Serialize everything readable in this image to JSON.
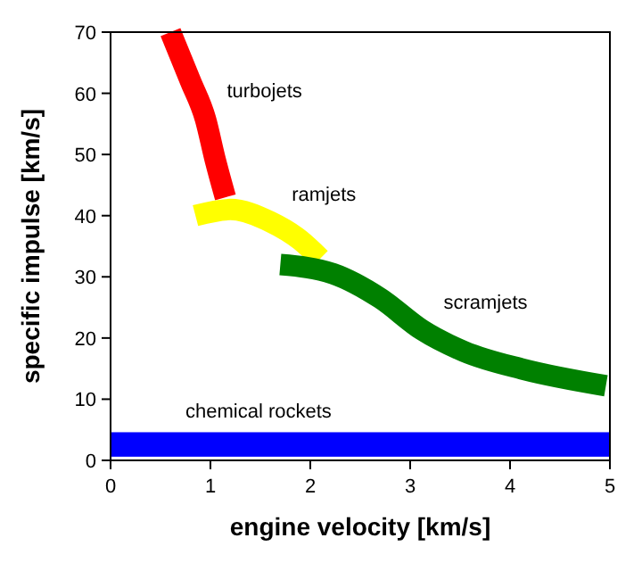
{
  "chart_data": {
    "type": "line",
    "xlabel": "engine velocity [km/s]",
    "ylabel": "specific impulse [km/s]",
    "xlim": [
      0,
      5
    ],
    "xticks": [
      0,
      1,
      2,
      3,
      4,
      5
    ],
    "ylim": [
      0,
      70
    ],
    "yticks": [
      0,
      10,
      20,
      30,
      40,
      50,
      60,
      70
    ],
    "grid": false,
    "marker": "none",
    "line_style": "solid",
    "series": [
      {
        "name": "turbojets",
        "color": "#ff0000",
        "x": [
          0.6,
          0.8,
          0.95,
          1.05,
          1.15
        ],
        "values": [
          70,
          62,
          55.8,
          49,
          43
        ]
      },
      {
        "name": "ramjets",
        "color": "#ffff00",
        "x": [
          0.85,
          1.2,
          1.6,
          1.9,
          2.1
        ],
        "values": [
          40,
          41,
          39,
          36,
          33
        ]
      },
      {
        "name": "scramjets",
        "color": "#008000",
        "x": [
          1.7,
          2.23,
          2.7,
          3.12,
          3.54,
          4.13,
          4.96
        ],
        "values": [
          32,
          30.5,
          26.5,
          21.3,
          17.8,
          14.9,
          12.2
        ]
      }
    ],
    "bands": [
      {
        "axis": "y",
        "from": 0.6,
        "to": 4.6,
        "label": "chemical rockets",
        "color": "#0000ff"
      }
    ]
  }
}
